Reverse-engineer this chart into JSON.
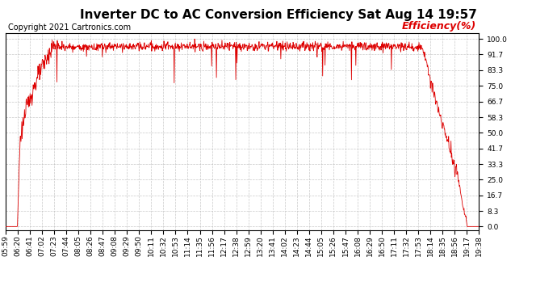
{
  "title": "Inverter DC to AC Conversion Efficiency Sat Aug 14 19:57",
  "copyright_text": "Copyright 2021 Cartronics.com",
  "legend_label": "Efficiency(%)",
  "line_color": "#dd0000",
  "background_color": "#ffffff",
  "grid_color": "#bbbbbb",
  "ylim": [
    0.0,
    100.0
  ],
  "yticks": [
    0.0,
    8.3,
    16.7,
    25.0,
    33.3,
    41.7,
    50.0,
    58.3,
    66.7,
    75.0,
    83.3,
    91.7,
    100.0
  ],
  "xtick_labels": [
    "05:59",
    "06:20",
    "06:41",
    "07:02",
    "07:23",
    "07:44",
    "08:05",
    "08:26",
    "08:47",
    "09:08",
    "09:29",
    "09:50",
    "10:11",
    "10:32",
    "10:53",
    "11:14",
    "11:35",
    "11:56",
    "12:17",
    "12:38",
    "12:59",
    "13:20",
    "13:41",
    "14:02",
    "14:23",
    "14:44",
    "15:05",
    "15:26",
    "15:47",
    "16:08",
    "16:29",
    "16:50",
    "17:11",
    "17:32",
    "17:53",
    "18:14",
    "18:35",
    "18:56",
    "19:17",
    "19:38"
  ],
  "title_fontsize": 11,
  "copyright_fontsize": 7,
  "legend_fontsize": 9,
  "tick_fontsize": 6.5
}
